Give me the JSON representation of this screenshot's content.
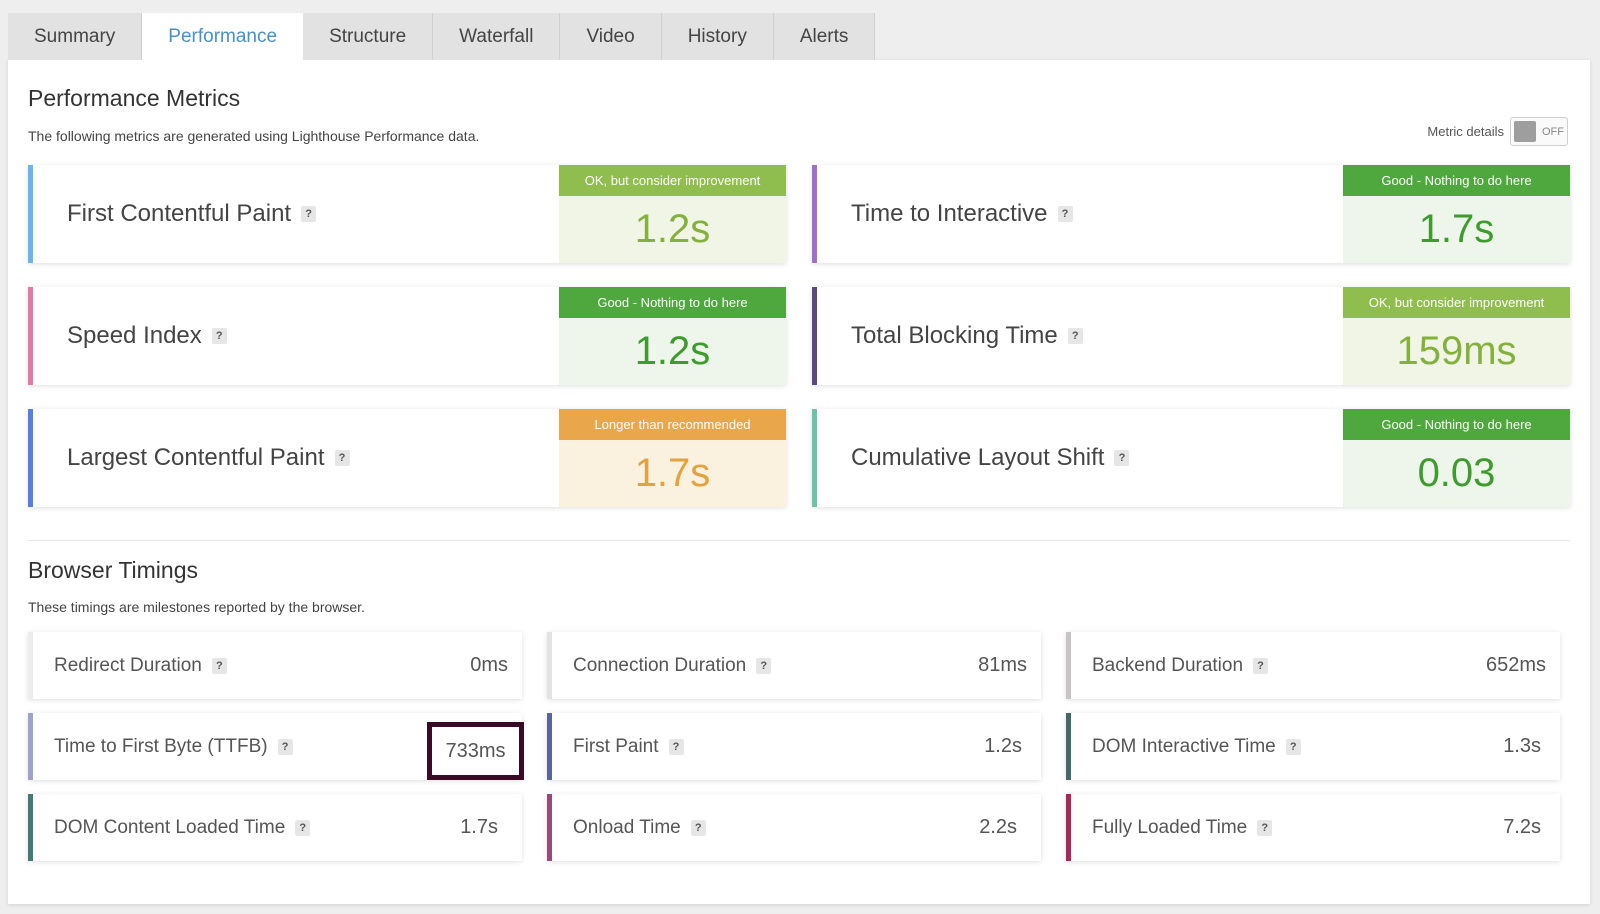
{
  "tabs": [
    {
      "label": "Summary",
      "active": false
    },
    {
      "label": "Performance",
      "active": true
    },
    {
      "label": "Structure",
      "active": false
    },
    {
      "label": "Waterfall",
      "active": false
    },
    {
      "label": "Video",
      "active": false
    },
    {
      "label": "History",
      "active": false
    },
    {
      "label": "Alerts",
      "active": false
    }
  ],
  "performance": {
    "title": "Performance Metrics",
    "description": "The following metrics are generated using Lighthouse Performance data.",
    "toggle": {
      "label": "Metric details",
      "state": "OFF"
    },
    "metrics": [
      {
        "name": "First Contentful Paint",
        "grade": "OK, but consider improvement",
        "value": "1.2s",
        "level": "ok",
        "accent": "#6cb4ea"
      },
      {
        "name": "Time to Interactive",
        "grade": "Good - Nothing to do here",
        "value": "1.7s",
        "level": "good",
        "accent": "#a070c8"
      },
      {
        "name": "Speed Index",
        "grade": "Good - Nothing to do here",
        "value": "1.2s",
        "level": "good",
        "accent": "#e27aa8"
      },
      {
        "name": "Total Blocking Time",
        "grade": "OK, but consider improvement",
        "value": "159ms",
        "level": "ok",
        "accent": "#5a4a84"
      },
      {
        "name": "Largest Contentful Paint",
        "grade": "Longer than recommended",
        "value": "1.7s",
        "level": "warn",
        "accent": "#5a7ee0"
      },
      {
        "name": "Cumulative Layout Shift",
        "grade": "Good - Nothing to do here",
        "value": "0.03",
        "level": "good",
        "accent": "#6cc4a8"
      }
    ]
  },
  "browser": {
    "title": "Browser Timings",
    "description": "These timings are milestones reported by the browser.",
    "timings": [
      {
        "name": "Redirect Duration",
        "value": "0ms",
        "accent": "#ededed"
      },
      {
        "name": "Connection Duration",
        "value": "81ms",
        "accent": "#e2e2e2"
      },
      {
        "name": "Backend Duration",
        "value": "652ms",
        "accent": "#c8c4c6"
      },
      {
        "name": "Time to First Byte (TTFB)",
        "value": "733ms",
        "accent": "#9ea4c8"
      },
      {
        "name": "First Paint",
        "value": "1.2s",
        "accent": "#5a64a0"
      },
      {
        "name": "DOM Interactive Time",
        "value": "1.3s",
        "accent": "#446a68"
      },
      {
        "name": "DOM Content Loaded Time",
        "value": "1.7s",
        "accent": "#467874"
      },
      {
        "name": "Onload Time",
        "value": "2.2s",
        "accent": "#9a4a78"
      },
      {
        "name": "Fully Loaded Time",
        "value": "7.2s",
        "accent": "#a8285a"
      }
    ]
  },
  "help_glyph": "?",
  "colors": {
    "tab_active": "#4a90c8",
    "grade_ok": "#8fbe4e",
    "grade_good": "#4fa83d",
    "grade_warn": "#e9a64a",
    "highlight_box": "#3b0b26"
  }
}
